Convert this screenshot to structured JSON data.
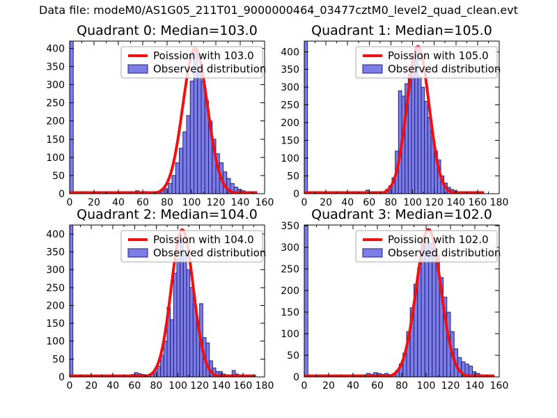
{
  "figure": {
    "suptitle": "Data file: modeM0/AS1G05_211T01_9000000464_03477cztM0_level2_quad_clean.evt",
    "background": "#ffffff"
  },
  "colors": {
    "hist_fill": "#7d7de8",
    "hist_edge": "#1f1f78",
    "curve": "#f01010",
    "legend_border": "#ababab",
    "axis": "#000000"
  },
  "chart_data": [
    {
      "type": "bar",
      "subtype": "histogram-with-fit",
      "title": "Quadrant 0: Median=103.0",
      "median": 103.0,
      "legend": [
        "Poission with 103.0",
        "Observed distribution"
      ],
      "legend_position": "upper right",
      "grid": false,
      "xlim": [
        0,
        160
      ],
      "ylim": [
        0,
        420
      ],
      "xticks": [
        0,
        20,
        40,
        60,
        80,
        100,
        120,
        140,
        160
      ],
      "yticks": [
        0,
        50,
        100,
        150,
        200,
        250,
        300,
        350,
        400
      ],
      "bin_start": 24,
      "bin_width": 3,
      "counts": [
        4,
        0,
        0,
        0,
        0,
        0,
        0,
        0,
        0,
        0,
        8,
        5,
        6,
        3,
        2,
        3,
        5,
        8,
        14,
        28,
        50,
        85,
        125,
        170,
        215,
        310,
        395,
        345,
        310,
        255,
        200,
        150,
        110,
        85,
        60,
        42,
        28,
        18,
        12,
        8,
        5,
        3,
        2
      ],
      "zero_bin": {
        "x": 0,
        "width": 3,
        "clipped_at_top": true
      },
      "poisson": {
        "mean": 103.0,
        "sigma": 10.1,
        "amplitude": 400,
        "x_start": 0,
        "x_end": 154
      }
    },
    {
      "type": "bar",
      "subtype": "histogram-with-fit",
      "title": "Quadrant 1: Median=105.0",
      "median": 105.0,
      "legend": [
        "Poission with 105.0",
        "Observed distribution"
      ],
      "legend_position": "upper right",
      "grid": false,
      "xlim": [
        0,
        180
      ],
      "ylim": [
        0,
        430
      ],
      "xticks": [
        0,
        20,
        40,
        60,
        80,
        100,
        120,
        140,
        160,
        180
      ],
      "yticks": [
        0,
        50,
        100,
        150,
        200,
        250,
        300,
        350,
        400
      ],
      "bin_start": 24,
      "bin_width": 3,
      "counts": [
        0,
        0,
        0,
        0,
        0,
        0,
        0,
        0,
        0,
        0,
        0,
        10,
        4,
        2,
        2,
        3,
        5,
        12,
        22,
        45,
        120,
        290,
        275,
        310,
        340,
        360,
        412,
        330,
        300,
        260,
        215,
        160,
        120,
        95,
        50,
        30,
        18,
        12,
        8,
        5,
        3,
        2,
        5,
        2,
        1,
        2
      ],
      "zero_bin": {
        "x": 0,
        "width": 3,
        "clipped_at_top": true
      },
      "poisson": {
        "mean": 105.0,
        "sigma": 10.2,
        "amplitude": 415,
        "x_start": 0,
        "x_end": 166
      }
    },
    {
      "type": "bar",
      "subtype": "histogram-with-fit",
      "title": "Quadrant 2: Median=104.0",
      "median": 104.0,
      "legend": [
        "Poission with 104.0",
        "Observed distribution"
      ],
      "legend_position": "upper right",
      "grid": false,
      "xlim": [
        0,
        180
      ],
      "ylim": [
        0,
        425
      ],
      "xticks": [
        0,
        20,
        40,
        60,
        80,
        100,
        120,
        140,
        160,
        180
      ],
      "yticks": [
        0,
        50,
        100,
        150,
        200,
        250,
        300,
        350,
        400
      ],
      "bin_start": 24,
      "bin_width": 3,
      "counts": [
        0,
        0,
        0,
        0,
        0,
        0,
        0,
        0,
        0,
        0,
        0,
        7,
        12,
        9,
        7,
        6,
        5,
        8,
        15,
        30,
        60,
        100,
        195,
        160,
        290,
        330,
        390,
        340,
        300,
        250,
        205,
        150,
        205,
        110,
        95,
        45,
        25,
        15,
        15,
        8,
        5,
        4,
        18,
        8,
        4,
        2,
        1
      ],
      "zero_bin": {
        "x": 0,
        "width": 3,
        "clipped_at_top": true
      },
      "poisson": {
        "mean": 104.0,
        "sigma": 10.2,
        "amplitude": 412,
        "x_start": 0,
        "x_end": 172
      }
    },
    {
      "type": "bar",
      "subtype": "histogram-with-fit",
      "title": "Quadrant 3: Median=102.0",
      "median": 102.0,
      "legend": [
        "Poission with 102.0",
        "Observed distribution"
      ],
      "legend_position": "upper right",
      "grid": false,
      "xlim": [
        0,
        160
      ],
      "ylim": [
        0,
        352
      ],
      "xticks": [
        0,
        20,
        40,
        60,
        80,
        100,
        120,
        140,
        160
      ],
      "yticks": [
        0,
        50,
        100,
        150,
        200,
        250,
        300,
        350
      ],
      "bin_start": 24,
      "bin_width": 3,
      "counts": [
        0,
        0,
        0,
        0,
        0,
        0,
        0,
        0,
        0,
        8,
        6,
        10,
        8,
        6,
        8,
        5,
        6,
        15,
        30,
        55,
        105,
        160,
        215,
        252,
        308,
        315,
        310,
        298,
        282,
        230,
        185,
        150,
        105,
        65,
        45,
        35,
        30,
        25,
        12,
        8,
        5,
        3,
        2,
        1
      ],
      "zero_bin": {
        "x": 0,
        "width": 3,
        "clipped_at_top": true
      },
      "poisson": {
        "mean": 102.0,
        "sigma": 10.1,
        "amplitude": 342,
        "x_start": 0,
        "x_end": 156
      }
    }
  ]
}
